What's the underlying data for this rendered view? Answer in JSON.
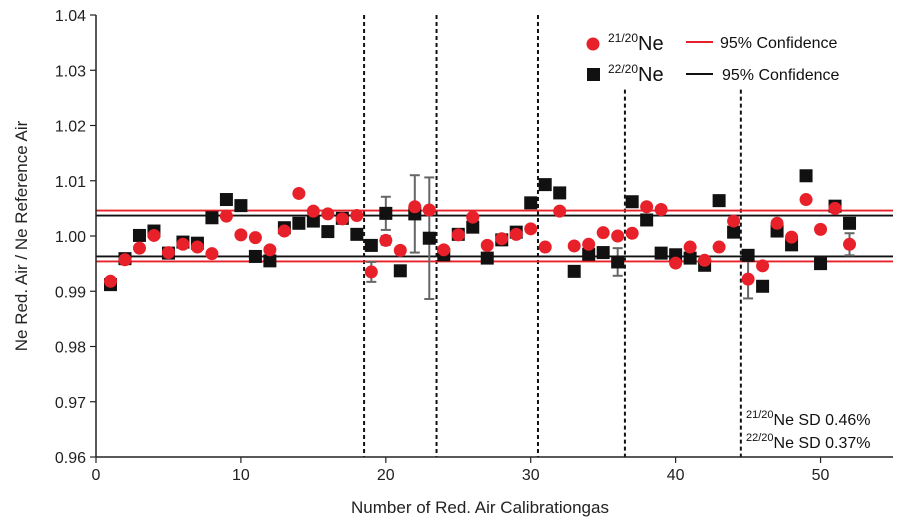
{
  "chart_data": {
    "type": "scatter",
    "xlabel": "Number of Red. Air Calibrationgas",
    "ylabel": "Ne Red. Air / Ne Reference Air",
    "xlim": [
      0,
      55
    ],
    "ylim": [
      0.96,
      1.04
    ],
    "xticks": [
      "0",
      "10",
      "20",
      "30",
      "40",
      "50"
    ],
    "yticks": [
      "0.96",
      "0.97",
      "0.98",
      "0.99",
      "1.00",
      "1.01",
      "1.02",
      "1.03",
      "1.04"
    ],
    "grid": false,
    "legend_position": "top-right",
    "vertical_dashed_lines_x": [
      18.5,
      23.5,
      30.5,
      36.5,
      44.5
    ],
    "series": [
      {
        "name_sup": "21/20",
        "name": "Ne",
        "marker": "circle",
        "color": "#e8202a",
        "x": [
          1,
          2,
          3,
          4,
          5,
          6,
          7,
          8,
          9,
          10,
          11,
          12,
          13,
          14,
          15,
          16,
          17,
          18,
          19,
          20,
          21,
          22,
          23,
          24,
          25,
          26,
          27,
          28,
          29,
          30,
          31,
          32,
          33,
          34,
          35,
          36,
          37,
          38,
          39,
          40,
          41,
          42,
          43,
          44,
          45,
          46,
          47,
          48,
          49,
          50,
          51,
          52
        ],
        "values": [
          0.9918,
          0.9957,
          0.9978,
          1.0001,
          0.997,
          0.9985,
          0.998,
          0.9968,
          1.0036,
          1.0002,
          0.9997,
          0.9975,
          1.0009,
          1.0077,
          1.0045,
          1.004,
          1.0031,
          1.0037,
          0.9935,
          0.9992,
          0.9974,
          1.0053,
          1.0047,
          0.9975,
          1.0002,
          1.0034,
          0.9983,
          0.9995,
          1.0003,
          1.0013,
          0.998,
          1.0045,
          0.9982,
          0.9985,
          1.0006,
          1.0,
          1.0005,
          1.0053,
          1.0048,
          0.9951,
          0.998,
          0.9956,
          0.998,
          1.0027,
          0.9922,
          0.9946,
          1.0023,
          0.9998,
          1.0066,
          1.0012,
          1.005,
          0.9985
        ],
        "errors": [
          0,
          0,
          0,
          0,
          0,
          0,
          0,
          0,
          0,
          0,
          0,
          0,
          0,
          0,
          0,
          0,
          0,
          0,
          0.0018,
          0.0008,
          0,
          0,
          0,
          0,
          0,
          0,
          0,
          0,
          0,
          0,
          0,
          0,
          0,
          0,
          0,
          0,
          0,
          0,
          0,
          0,
          0,
          0,
          0,
          0,
          0.0035,
          0,
          0,
          0,
          0,
          0,
          0,
          0.002
        ]
      },
      {
        "name_sup": "22/20",
        "name": "Ne",
        "marker": "square",
        "color": "#111111",
        "x": [
          1,
          2,
          3,
          4,
          5,
          6,
          7,
          8,
          9,
          10,
          11,
          12,
          13,
          14,
          15,
          16,
          17,
          18,
          19,
          20,
          21,
          22,
          23,
          24,
          25,
          26,
          27,
          28,
          29,
          30,
          31,
          32,
          33,
          34,
          35,
          36,
          37,
          38,
          39,
          40,
          41,
          42,
          43,
          44,
          45,
          46,
          47,
          48,
          49,
          50,
          51,
          52
        ],
        "values": [
          0.9912,
          0.9959,
          1.0001,
          1.0009,
          0.9969,
          0.9989,
          0.9987,
          1.0033,
          1.0066,
          1.0055,
          0.9963,
          0.9955,
          1.0015,
          1.0023,
          1.0027,
          1.0008,
          1.0032,
          1.0003,
          0.9983,
          1.0041,
          0.9937,
          1.004,
          0.9996,
          0.9966,
          1.0003,
          1.0016,
          0.996,
          0.9993,
          1.0007,
          1.006,
          1.0093,
          1.0078,
          0.9936,
          0.9967,
          0.997,
          0.9953,
          1.0062,
          1.0029,
          0.9969,
          0.9966,
          0.996,
          0.9947,
          1.0064,
          1.0007,
          0.9965,
          0.9909,
          1.0009,
          0.9984,
          1.0109,
          0.995,
          1.0054,
          1.0023
        ],
        "errors": [
          0,
          0,
          0,
          0,
          0,
          0,
          0,
          0,
          0,
          0,
          0,
          0,
          0,
          0,
          0,
          0,
          0,
          0,
          0,
          0.003,
          0,
          0.007,
          0.011,
          0,
          0,
          0,
          0,
          0,
          0,
          0,
          0,
          0,
          0,
          0,
          0,
          0.0025,
          0,
          0,
          0,
          0,
          0,
          0,
          0,
          0,
          0,
          0,
          0,
          0,
          0,
          0,
          0,
          0
        ]
      }
    ],
    "confidence_bands": [
      {
        "series_index": 0,
        "label": "95% Confidence",
        "upper": 1.0046,
        "lower": 0.9954,
        "color": "#e8202a"
      },
      {
        "series_index": 1,
        "label": "95% Confidence",
        "upper": 1.0037,
        "lower": 0.9963,
        "color": "#111111"
      }
    ],
    "annotations": [
      {
        "sup": "21/20",
        "text": "Ne SD 0.46%"
      },
      {
        "sup": "22/20",
        "text": "Ne SD 0.37%"
      }
    ]
  }
}
